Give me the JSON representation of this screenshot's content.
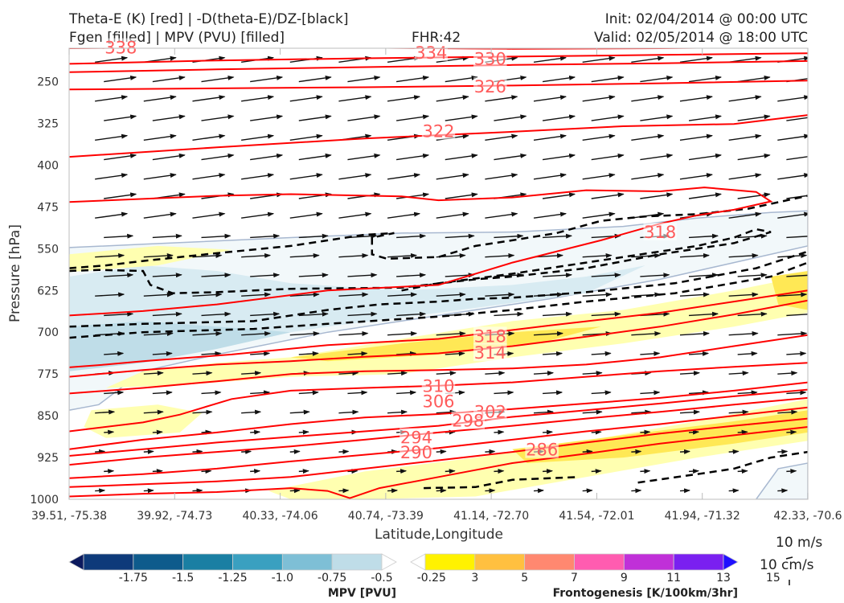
{
  "header": {
    "title_line1": "Theta-E (K) [red] | -D(theta-E)/DZ-[black]",
    "title_line2": "Fgen [filled] | MPV (PVU) [filled]",
    "fhr": "FHR:42",
    "init": "Init: 02/04/2014 @ 00:00 UTC",
    "valid": "Valid: 02/05/2014 @ 18:00 UTC"
  },
  "chart_data": {
    "type": "cross-section",
    "xlabel": "Latitude,Longitude",
    "ylabel": "Pressure [hPa]",
    "ylim": [
      1000,
      190
    ],
    "y_ticks": [
      250,
      325,
      400,
      475,
      550,
      625,
      700,
      775,
      850,
      925,
      1000
    ],
    "x_ticks": [
      "39.51, -75.38",
      "39.92, -74.73",
      "40.33, -74.06",
      "40.74, -73.39",
      "41.14, -72.70",
      "41.54, -72.01",
      "41.94, -71.32",
      "42.33, -70.6"
    ],
    "theta_e_labels": [
      {
        "value": "338",
        "x": 0.07,
        "p": 188
      },
      {
        "value": "334",
        "x": 0.49,
        "p": 197
      },
      {
        "value": "330",
        "x": 0.57,
        "p": 208
      },
      {
        "value": "326",
        "x": 0.57,
        "p": 258
      },
      {
        "value": "322",
        "x": 0.5,
        "p": 338
      },
      {
        "value": "318",
        "x": 0.8,
        "p": 519
      },
      {
        "value": "318",
        "x": 0.57,
        "p": 706
      },
      {
        "value": "314",
        "x": 0.57,
        "p": 736
      },
      {
        "value": "310",
        "x": 0.5,
        "p": 796
      },
      {
        "value": "306",
        "x": 0.5,
        "p": 823
      },
      {
        "value": "302",
        "x": 0.57,
        "p": 842
      },
      {
        "value": "298",
        "x": 0.54,
        "p": 858
      },
      {
        "value": "294",
        "x": 0.47,
        "p": 888
      },
      {
        "value": "290",
        "x": 0.47,
        "p": 915
      },
      {
        "value": "286",
        "x": 0.64,
        "p": 910
      }
    ],
    "colorbars": [
      {
        "title": "MPV [PVU]",
        "ticks": [
          "-1.75",
          "-1.5",
          "-1.25",
          "-1.0",
          "-0.75",
          "-0.5",
          "-0.25"
        ],
        "colors": [
          "#0c1a5e",
          "#0e3a7a",
          "#0e5b8c",
          "#1a7fa3",
          "#3aa0c0",
          "#7ebfd6",
          "#bfdde8",
          "#ffffff"
        ]
      },
      {
        "title": "Frontogenesis [K/100km/3hr]",
        "ticks": [
          "3",
          "5",
          "7",
          "9",
          "11",
          "13",
          "15"
        ],
        "colors": [
          "#ffffff",
          "#fff200",
          "#ffc040",
          "#ff8870",
          "#ff5cb0",
          "#c030d8",
          "#7a20f0",
          "#2010ff"
        ]
      }
    ],
    "vector_key": {
      "label1": "10 m/s",
      "label2": "10 cm/s"
    },
    "colors": {
      "theta_e": "#ff0000",
      "label": "#ff5a5a",
      "ddz": "#000000"
    }
  }
}
